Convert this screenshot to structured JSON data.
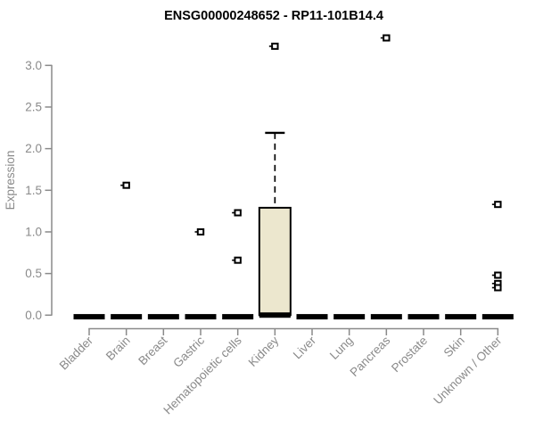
{
  "chart_data": {
    "type": "boxplot",
    "title": "ENSG00000248652 - RP11-101B14.4",
    "ylabel": "Expression",
    "xlabel": "",
    "ylim": [
      0.0,
      3.4
    ],
    "ytick_labels": [
      "0.0",
      "0.5",
      "1.0",
      "1.5",
      "2.0",
      "2.5",
      "3.0"
    ],
    "ytick_values": [
      0.0,
      0.5,
      1.0,
      1.5,
      2.0,
      2.5,
      3.0
    ],
    "grid": false,
    "legend": "none",
    "categories": [
      "Bladder",
      "Brain",
      "Breast",
      "Gastric",
      "Hematopoietic cells",
      "Kidney",
      "Liver",
      "Lung",
      "Pancreas",
      "Prostate",
      "Skin",
      "Unknown / Other"
    ],
    "series": [
      {
        "category": "Bladder",
        "q1": 0,
        "median": 0,
        "q3": 0,
        "whisker_low": 0,
        "whisker_high": 0,
        "outliers": []
      },
      {
        "category": "Brain",
        "q1": 0,
        "median": 0,
        "q3": 0,
        "whisker_low": 0,
        "whisker_high": 0,
        "outliers": [
          1.56
        ]
      },
      {
        "category": "Breast",
        "q1": 0,
        "median": 0,
        "q3": 0,
        "whisker_low": 0,
        "whisker_high": 0,
        "outliers": []
      },
      {
        "category": "Gastric",
        "q1": 0,
        "median": 0,
        "q3": 0,
        "whisker_low": 0,
        "whisker_high": 0,
        "outliers": [
          1.0
        ]
      },
      {
        "category": "Hematopoietic cells",
        "q1": 0,
        "median": 0,
        "q3": 0,
        "whisker_low": 0,
        "whisker_high": 0,
        "outliers": [
          1.23,
          0.66
        ]
      },
      {
        "category": "Kidney",
        "q1": 0,
        "median": 0.02,
        "q3": 1.29,
        "whisker_low": 0,
        "whisker_high": 2.19,
        "outliers": [
          3.23
        ]
      },
      {
        "category": "Liver",
        "q1": 0,
        "median": 0,
        "q3": 0,
        "whisker_low": 0,
        "whisker_high": 0,
        "outliers": []
      },
      {
        "category": "Lung",
        "q1": 0,
        "median": 0,
        "q3": 0,
        "whisker_low": 0,
        "whisker_high": 0,
        "outliers": []
      },
      {
        "category": "Pancreas",
        "q1": 0,
        "median": 0,
        "q3": 0,
        "whisker_low": 0,
        "whisker_high": 0,
        "outliers": [
          3.33
        ]
      },
      {
        "category": "Prostate",
        "q1": 0,
        "median": 0,
        "q3": 0,
        "whisker_low": 0,
        "whisker_high": 0,
        "outliers": []
      },
      {
        "category": "Skin",
        "q1": 0,
        "median": 0,
        "q3": 0,
        "whisker_low": 0,
        "whisker_high": 0,
        "outliers": []
      },
      {
        "category": "Unknown / Other",
        "q1": 0,
        "median": 0,
        "q3": 0,
        "whisker_low": 0,
        "whisker_high": 0,
        "outliers": [
          1.33,
          0.48,
          0.38,
          0.33
        ]
      }
    ],
    "colors": {
      "box_fill": "#ece7ce",
      "box_stroke": "#000000",
      "median": "#000000",
      "whisker": "#000000",
      "outlier": "#000000",
      "axis": "#8a8a8a",
      "tick_label": "#8a8a8a",
      "title": "#000000",
      "background": "#ffffff"
    }
  }
}
